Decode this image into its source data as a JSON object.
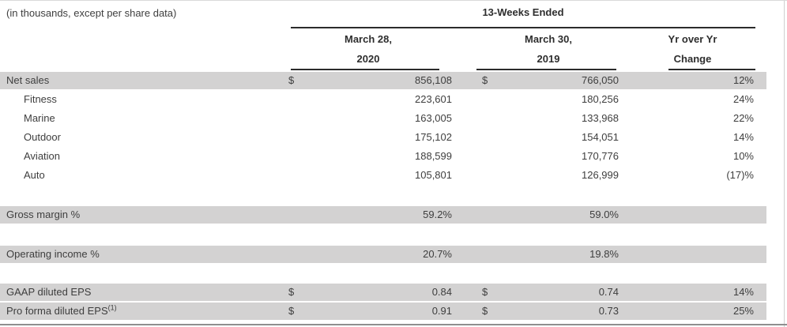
{
  "meta": {
    "note": "(in thousands, except per share data)"
  },
  "header": {
    "group_title": "13-Weeks Ended",
    "columns": [
      {
        "line1": "March 28,",
        "line2": "2020"
      },
      {
        "line1": "March 30,",
        "line2": "2019"
      },
      {
        "line1": "Yr over Yr",
        "line2": "Change"
      }
    ]
  },
  "table": {
    "rows": [
      {
        "label": "Net sales",
        "d1": "$",
        "v1": "856,108",
        "d2": "$",
        "v2": "766,050",
        "v3": "12%"
      },
      {
        "label": "Fitness",
        "v1": "223,601",
        "v2": "180,256",
        "v3": "24%"
      },
      {
        "label": "Marine",
        "v1": "163,005",
        "v2": "133,968",
        "v3": "22%"
      },
      {
        "label": "Outdoor",
        "v1": "175,102",
        "v2": "154,051",
        "v3": "14%"
      },
      {
        "label": "Aviation",
        "v1": "188,599",
        "v2": "170,776",
        "v3": "10%"
      },
      {
        "label": "Auto",
        "v1": "105,801",
        "v2": "126,999",
        "v3": "(17)%"
      },
      {
        "label": "Gross margin %",
        "v1": "59.2%",
        "v2": "59.0%"
      },
      {
        "label": "Operating income %",
        "v1": "20.7%",
        "v2": "19.8%"
      },
      {
        "label": "GAAP diluted EPS",
        "d1": "$",
        "v1": "0.84",
        "d2": "$",
        "v2": "0.74",
        "v3": "14%"
      },
      {
        "label": "Pro forma diluted EPS",
        "sup": "(1)",
        "d1": "$",
        "v1": "0.91",
        "d2": "$",
        "v2": "0.73",
        "v3": "25%"
      }
    ]
  },
  "colors": {
    "stripe": "#d3d2d2",
    "rule": "#2b2b2b",
    "bottom_bar": "#8f8f8f",
    "text": "#3e3e3e"
  }
}
